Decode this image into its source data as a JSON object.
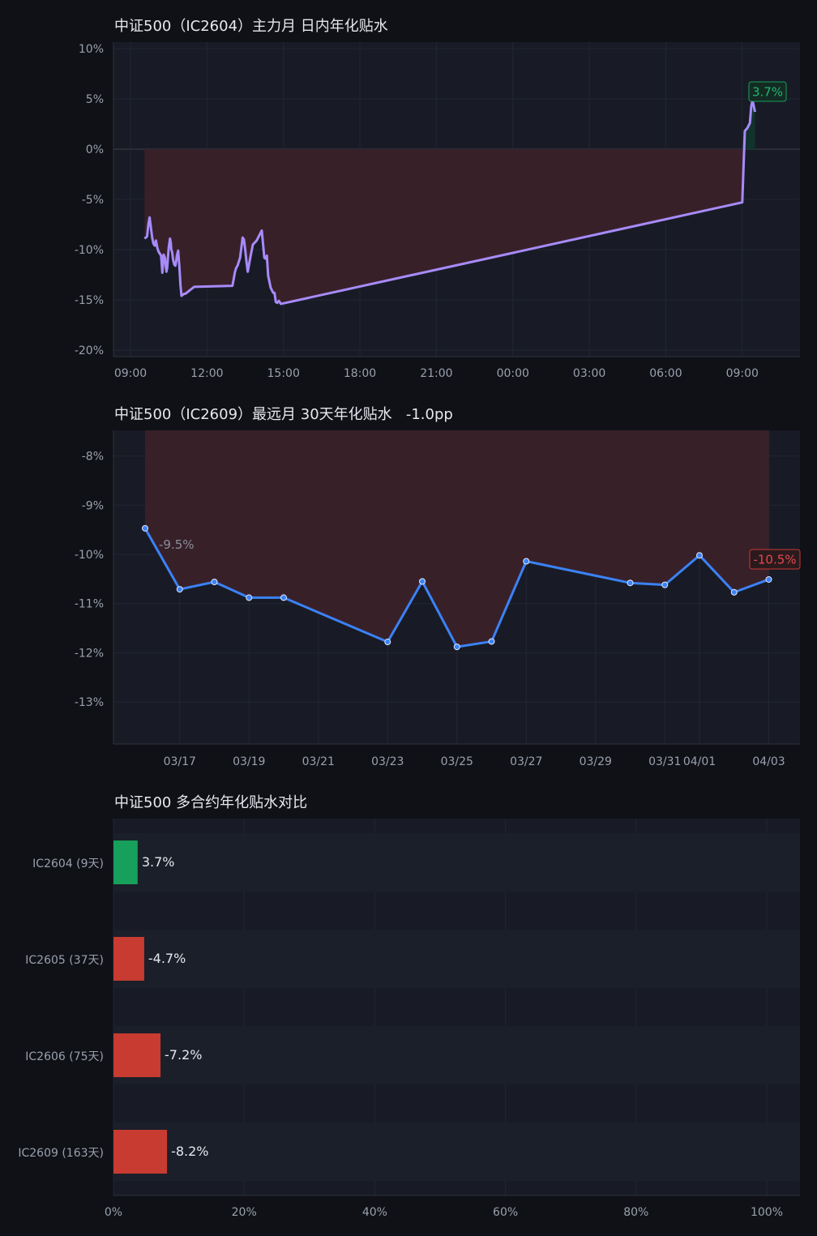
{
  "colors": {
    "background": "#0f1116",
    "plot_bg": "#181b25",
    "grid": "#222635",
    "zero_line": "#3b3f4c",
    "line1": "#a78bfa",
    "line2": "#3b82f6",
    "neg_fill": "#3a2129",
    "pos_fill": "#12342c",
    "positive": "#16a05c",
    "negative": "#c73b31",
    "label_pos": "#22b573",
    "label_neg": "#e5484d",
    "tick": "#9aa0ae",
    "title": "#e6e8ee"
  },
  "chart_data": [
    {
      "type": "line",
      "title": "中证500（IC2604）主力月 日内年化贴水",
      "x_unit": "hours from 09:00 (Mar 23 session start)",
      "x_ticks": [
        "09:00",
        "12:00",
        "15:00",
        "18:00",
        "21:00",
        "00:00",
        "03:00",
        "06:00",
        "09:00"
      ],
      "y_ticks": [
        "10%",
        "5%",
        "0%",
        "-5%",
        "-10%",
        "-15%",
        "-20%"
      ],
      "ylim": [
        -20,
        10
      ],
      "grid": true,
      "series": [
        {
          "x": [
            0.55,
            0.65,
            0.7,
            0.75,
            0.8,
            0.85,
            0.9,
            0.95,
            1.0,
            1.05,
            1.1,
            1.15,
            1.2,
            1.25,
            1.3,
            1.35,
            1.38,
            1.41,
            1.44,
            1.5,
            1.55,
            1.58,
            1.6,
            1.63,
            1.67,
            1.72,
            1.76,
            1.79,
            1.82,
            1.87,
            1.92,
            1.96,
            2.0,
            2.05,
            2.1,
            2.15,
            2.2,
            2.3,
            2.5,
            4.0,
            4.1,
            4.15,
            4.2,
            4.3,
            4.4,
            4.45,
            4.5,
            4.55,
            4.6,
            4.7,
            4.8,
            4.95,
            5.15,
            5.25,
            5.3,
            5.35,
            5.4,
            5.5,
            5.6,
            5.65,
            5.7,
            5.75,
            5.82,
            5.9,
            24.0,
            24.1,
            24.2,
            24.3,
            24.35,
            24.4,
            24.5
          ],
          "y": [
            -8.9,
            -8.7,
            -7.5,
            -6.8,
            -7.8,
            -8.8,
            -9.4,
            -9.6,
            -9.1,
            -9.8,
            -10.2,
            -10.4,
            -10.6,
            -12.3,
            -10.5,
            -10.8,
            -11.6,
            -12.2,
            -11.8,
            -9.8,
            -8.9,
            -9.3,
            -10.0,
            -10.2,
            -11.0,
            -11.5,
            -11.6,
            -11.2,
            -10.6,
            -10.1,
            -11.8,
            -13.5,
            -14.6,
            -14.5,
            -14.4,
            -14.4,
            -14.3,
            -14.1,
            -13.7,
            -13.6,
            -12.2,
            -11.8,
            -11.6,
            -10.8,
            -8.8,
            -9.0,
            -10.0,
            -11.2,
            -12.2,
            -10.8,
            -9.5,
            -9.1,
            -8.1,
            -10.8,
            -10.9,
            -10.6,
            -12.6,
            -13.8,
            -14.3,
            -14.3,
            -15.2,
            -15.3,
            -15.1,
            -15.4,
            -5.3,
            1.8,
            2.1,
            2.6,
            4.2,
            4.9,
            3.7
          ]
        }
      ],
      "last_label": "3.7%"
    },
    {
      "type": "line",
      "title": "中证500（IC2609）最远月 30天年化贴水   -1.0pp",
      "x_unit": "day of March",
      "x_ticks": [
        {
          "x": 17,
          "label": "03/17"
        },
        {
          "x": 19,
          "label": "03/19"
        },
        {
          "x": 21,
          "label": "03/21"
        },
        {
          "x": 23,
          "label": "03/23"
        },
        {
          "x": 25,
          "label": "03/25"
        },
        {
          "x": 27,
          "label": "03/27"
        },
        {
          "x": 29,
          "label": "03/29"
        },
        {
          "x": 31,
          "label": "03/31"
        },
        {
          "x": 32,
          "label": "04/01"
        },
        {
          "x": 34,
          "label": "04/03"
        }
      ],
      "y_ticks": [
        "-8%",
        "-9%",
        "-10%",
        "-11%",
        "-12%",
        "-13%"
      ],
      "ylim": [
        -13.85,
        -7.5
      ],
      "grid": true,
      "series": [
        {
          "x": [
            16,
            17,
            18,
            19,
            20,
            23,
            24,
            25,
            26,
            27,
            30,
            31,
            32,
            33,
            34
          ],
          "y": [
            -9.47,
            -10.71,
            -10.56,
            -10.88,
            -10.88,
            -11.78,
            -10.55,
            -11.88,
            -11.77,
            -10.14,
            -10.58,
            -10.62,
            -10.02,
            -10.77,
            -10.51
          ]
        }
      ],
      "first_label": "-9.5%",
      "last_label": "-10.5%"
    },
    {
      "type": "bar",
      "orientation": "horizontal",
      "title": "中证500 多合约年化贴水对比",
      "categories": [
        "IC2604 (9天)",
        "IC2605 (37天)",
        "IC2606 (75天)",
        "IC2609 (163天)"
      ],
      "values": [
        3.7,
        -4.7,
        -7.2,
        -8.2
      ],
      "data_labels": [
        "3.7%",
        "-4.7%",
        "-7.2%",
        "-8.2%"
      ],
      "x_ticks": [
        "0%",
        "20%",
        "40%",
        "60%",
        "80%",
        "100%"
      ],
      "xlim": [
        0,
        100
      ],
      "grid": true
    }
  ]
}
